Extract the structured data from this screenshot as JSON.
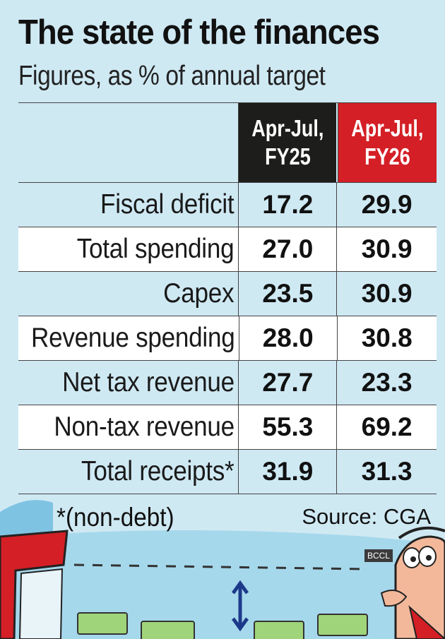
{
  "title": "The state of the finances",
  "subtitle": "Figures, as % of annual target",
  "footnote": "*(non-debt)",
  "source": "Source: CGA",
  "watermark": "BCCL",
  "colors": {
    "background": "#cfe9f3",
    "fy25_header": "#1d1d1b",
    "fy26_header": "#d31f25"
  },
  "chart_data": {
    "type": "table",
    "columns": [
      {
        "line1": "Apr-Jul,",
        "line2": "FY25"
      },
      {
        "line1": "Apr-Jul,",
        "line2": "FY26"
      }
    ],
    "rows": [
      {
        "label": "Fiscal deficit",
        "fy25": "17.2",
        "fy26": "29.9"
      },
      {
        "label": "Total spending",
        "fy25": "27.0",
        "fy26": "30.9"
      },
      {
        "label": "Capex",
        "fy25": "23.5",
        "fy26": "30.9"
      },
      {
        "label": "Revenue spending",
        "fy25": "28.0",
        "fy26": "30.8"
      },
      {
        "label": "Net tax revenue",
        "fy25": "27.7",
        "fy26": "23.3"
      },
      {
        "label": "Non-tax revenue",
        "fy25": "55.3",
        "fy26": "69.2"
      },
      {
        "label": "Total receipts*",
        "fy25": "31.9",
        "fy26": "31.3"
      }
    ]
  }
}
